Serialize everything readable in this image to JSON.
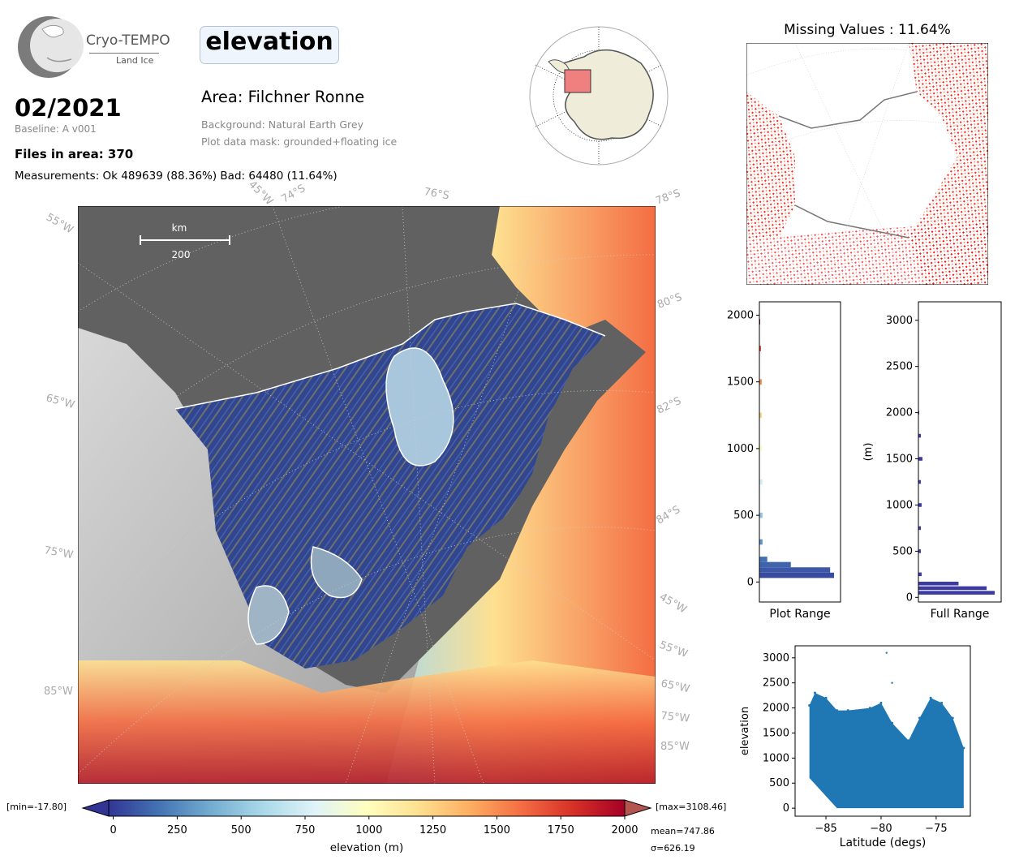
{
  "header": {
    "logo_title": "Cryo-TEMPO",
    "logo_subtitle": "Land Ice",
    "variable": "elevation",
    "date": "02/2021",
    "baseline": "Baseline: A v001",
    "files": "Files in area: 370",
    "measurements": "Measurements: Ok 489639 (88.36%) Bad: 64480 (11.64%)",
    "area": "Area: Filchner Ronne",
    "background": "Background: Natural Earth Grey",
    "plot_mask": "Plot data mask: grounded+floating ice"
  },
  "map": {
    "scale_label": "km",
    "scale_value": "200",
    "lon_labels": [
      "55°W",
      "45°W",
      "65°W",
      "75°W",
      "85°W",
      "45°W",
      "55°W",
      "65°W",
      "75°W",
      "85°W"
    ],
    "lat_labels": [
      "74°S",
      "76°S",
      "78°S",
      "80°S",
      "82°S",
      "84°S"
    ],
    "colors": {
      "ocean": "#616161",
      "ice_shelf_low": "#2b3f8f",
      "land_grey": "#b4b4b4"
    }
  },
  "missing": {
    "title": "Missing Values : 11.64%",
    "colors": {
      "missing": "#ff0000",
      "land": "#efedd9"
    }
  },
  "chart_data": [
    {
      "type": "bar",
      "name": "plot-range-histogram",
      "orientation": "horizontal",
      "xlabel": "Plot Range",
      "yticks": [
        0,
        500,
        1000,
        1500,
        2000
      ],
      "ylim": [
        -150,
        2100
      ],
      "bins": [
        {
          "y": 50,
          "count": 95
        },
        {
          "y": 90,
          "count": 90
        },
        {
          "y": 130,
          "count": 40
        },
        {
          "y": 170,
          "count": 10
        },
        {
          "y": 300,
          "count": 4
        },
        {
          "y": 500,
          "count": 4
        },
        {
          "y": 750,
          "count": 4
        },
        {
          "y": 1000,
          "count": 3
        },
        {
          "y": 1250,
          "count": 3
        },
        {
          "y": 1500,
          "count": 3
        },
        {
          "y": 1750,
          "count": 2
        },
        {
          "y": 1950,
          "count": 1
        }
      ]
    },
    {
      "type": "bar",
      "name": "full-range-histogram",
      "orientation": "horizontal",
      "xlabel": "Full Range",
      "ylabel": "(m)",
      "yticks": [
        0,
        500,
        1000,
        1500,
        2000,
        2500,
        3000
      ],
      "ylim": [
        -50,
        3200
      ],
      "color": "#3b3ba3",
      "bins": [
        {
          "y": 50,
          "count": 95
        },
        {
          "y": 100,
          "count": 85
        },
        {
          "y": 150,
          "count": 50
        },
        {
          "y": 250,
          "count": 4
        },
        {
          "y": 500,
          "count": 3
        },
        {
          "y": 750,
          "count": 3
        },
        {
          "y": 1000,
          "count": 4
        },
        {
          "y": 1250,
          "count": 3
        },
        {
          "y": 1500,
          "count": 5
        },
        {
          "y": 1750,
          "count": 3
        },
        {
          "y": 2000,
          "count": 1
        }
      ]
    },
    {
      "type": "scatter",
      "name": "elevation-vs-latitude",
      "xlabel": "Latitude (degs)",
      "ylabel": "elevation",
      "xticks": [
        -85,
        -80,
        -75
      ],
      "yticks": [
        0,
        500,
        1000,
        1500,
        2000,
        2500,
        3000
      ],
      "xlim": [
        -87.8,
        -71.9
      ],
      "ylim": [
        -160,
        3240
      ],
      "color": "#1f77b4",
      "upper_envelope": [
        {
          "x": -86.5,
          "y": 2050
        },
        {
          "x": -86,
          "y": 2300
        },
        {
          "x": -85,
          "y": 2200
        },
        {
          "x": -84,
          "y": 1950
        },
        {
          "x": -83,
          "y": 1950
        },
        {
          "x": -81,
          "y": 2000
        },
        {
          "x": -80,
          "y": 2100
        },
        {
          "x": -79,
          "y": 1700
        },
        {
          "x": -77.5,
          "y": 1350
        },
        {
          "x": -76.5,
          "y": 1800
        },
        {
          "x": -75.5,
          "y": 2200
        },
        {
          "x": -74.5,
          "y": 2100
        },
        {
          "x": -73.5,
          "y": 1800
        },
        {
          "x": -72.5,
          "y": 1200
        }
      ],
      "outliers": [
        {
          "x": -79.5,
          "y": 3100
        },
        {
          "x": -79,
          "y": 2500
        }
      ]
    },
    {
      "type": "colorbar",
      "label": "elevation (m)",
      "ticks": [
        0,
        250,
        500,
        750,
        1000,
        1250,
        1500,
        1750,
        2000
      ],
      "range": [
        -17.8,
        2000
      ],
      "min_label": "[min=-17.80]",
      "max_label": "[max=3108.46]",
      "mean_label": "mean=747.86",
      "sigma_label": "σ=626.19",
      "cmap": [
        "#313695",
        "#4575b4",
        "#74add1",
        "#abd9e9",
        "#e0f3f8",
        "#ffffbf",
        "#fee090",
        "#fdae61",
        "#f46d43",
        "#d73027",
        "#a50026"
      ]
    }
  ]
}
